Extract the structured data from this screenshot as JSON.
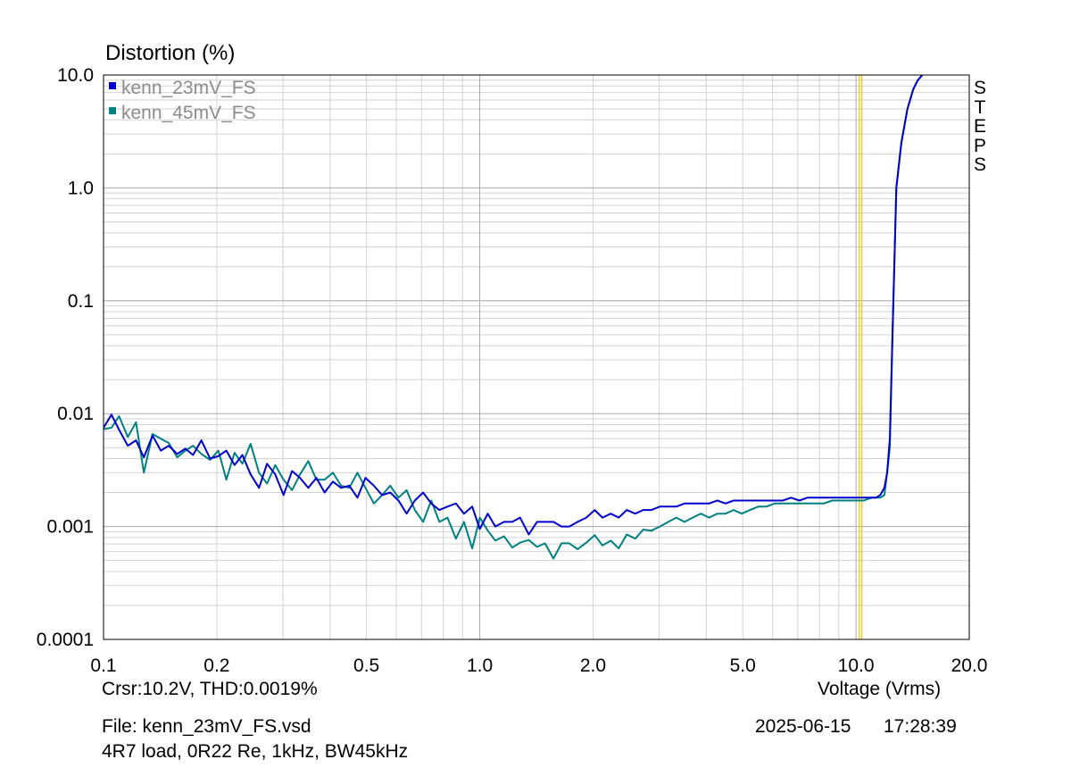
{
  "chart_data": {
    "type": "line",
    "title": "Distortion (%)",
    "xlabel": "Voltage (Vrms)",
    "ylabel": "Distortion (%)",
    "xscale": "log",
    "yscale": "log",
    "xlim": [
      0.1,
      20.0
    ],
    "ylim": [
      0.0001,
      10.0
    ],
    "grid": true,
    "x_tick_labels": [
      {
        "value": 0.1,
        "label": "0.1"
      },
      {
        "value": 0.2,
        "label": "0.2"
      },
      {
        "value": 0.5,
        "label": "0.5"
      },
      {
        "value": 1.0,
        "label": "1.0"
      },
      {
        "value": 2.0,
        "label": "2.0"
      },
      {
        "value": 5.0,
        "label": "5.0"
      },
      {
        "value": 10.0,
        "label": "10.0"
      },
      {
        "value": 20.0,
        "label": "20.0"
      }
    ],
    "y_tick_labels": [
      {
        "value": 10.0,
        "label": "10.0"
      },
      {
        "value": 1.0,
        "label": "1.0"
      },
      {
        "value": 0.1,
        "label": "0.1"
      },
      {
        "value": 0.01,
        "label": "0.01"
      },
      {
        "value": 0.001,
        "label": "0.001"
      },
      {
        "value": 0.0001,
        "label": "0.0001"
      }
    ],
    "cursor": {
      "x": 10.2,
      "color": "#ffc000",
      "label": "Crsr:10.2V, THD:0.0019%"
    },
    "legend_position": "top-left",
    "series": [
      {
        "name": "kenn_23mV_FS",
        "color": "#0000cc",
        "x": [
          0.1,
          0.105,
          0.11,
          0.116,
          0.122,
          0.128,
          0.135,
          0.142,
          0.149,
          0.157,
          0.165,
          0.173,
          0.182,
          0.192,
          0.202,
          0.212,
          0.223,
          0.234,
          0.246,
          0.259,
          0.272,
          0.286,
          0.301,
          0.317,
          0.333,
          0.35,
          0.368,
          0.387,
          0.407,
          0.428,
          0.45,
          0.473,
          0.497,
          0.523,
          0.55,
          0.578,
          0.608,
          0.639,
          0.672,
          0.707,
          0.743,
          0.781,
          0.821,
          0.864,
          0.908,
          0.955,
          1.0,
          1.05,
          1.1,
          1.16,
          1.22,
          1.28,
          1.35,
          1.42,
          1.49,
          1.57,
          1.65,
          1.73,
          1.82,
          1.92,
          2.02,
          2.12,
          2.23,
          2.34,
          2.46,
          2.59,
          2.72,
          2.86,
          3.01,
          3.17,
          3.33,
          3.5,
          3.68,
          3.87,
          4.07,
          4.28,
          4.5,
          4.73,
          4.97,
          5.23,
          5.5,
          5.78,
          6.08,
          6.39,
          6.72,
          7.07,
          7.43,
          7.81,
          8.21,
          8.64,
          9.08,
          9.55,
          10.0,
          10.5,
          11.0,
          11.3,
          11.6,
          11.9,
          12.1,
          12.3,
          12.5,
          12.8,
          13.2,
          13.7,
          14.2,
          14.6,
          15.0
        ],
        "values": [
          0.0075,
          0.0098,
          0.0072,
          0.0052,
          0.0058,
          0.0041,
          0.0064,
          0.0047,
          0.0052,
          0.0044,
          0.0049,
          0.0043,
          0.0058,
          0.004,
          0.0042,
          0.0047,
          0.0035,
          0.0043,
          0.0029,
          0.0022,
          0.0036,
          0.0029,
          0.0019,
          0.0031,
          0.0027,
          0.0022,
          0.0027,
          0.002,
          0.0025,
          0.0022,
          0.0023,
          0.0018,
          0.0027,
          0.0023,
          0.0019,
          0.002,
          0.0017,
          0.0013,
          0.0017,
          0.002,
          0.0016,
          0.0014,
          0.0015,
          0.0016,
          0.0013,
          0.0015,
          0.00095,
          0.0013,
          0.001,
          0.0011,
          0.0011,
          0.0012,
          0.00085,
          0.0011,
          0.0011,
          0.0011,
          0.001,
          0.001,
          0.0011,
          0.0012,
          0.0014,
          0.0012,
          0.0013,
          0.0012,
          0.0014,
          0.0013,
          0.0014,
          0.0014,
          0.0015,
          0.0015,
          0.0015,
          0.0016,
          0.0016,
          0.0016,
          0.0016,
          0.0017,
          0.0016,
          0.0017,
          0.0017,
          0.0017,
          0.0017,
          0.0017,
          0.0017,
          0.0017,
          0.0018,
          0.0017,
          0.0018,
          0.0018,
          0.0018,
          0.0018,
          0.0018,
          0.0018,
          0.0018,
          0.0018,
          0.0018,
          0.0018,
          0.0019,
          0.0022,
          0.003,
          0.006,
          0.05,
          1.0,
          2.5,
          5.0,
          7.5,
          9.0,
          10.5
        ]
      },
      {
        "name": "kenn_45mV_FS",
        "color": "#008080",
        "x": [
          0.1,
          0.105,
          0.11,
          0.116,
          0.122,
          0.128,
          0.135,
          0.142,
          0.149,
          0.157,
          0.165,
          0.173,
          0.182,
          0.192,
          0.202,
          0.212,
          0.223,
          0.234,
          0.246,
          0.259,
          0.272,
          0.286,
          0.301,
          0.317,
          0.333,
          0.35,
          0.368,
          0.387,
          0.407,
          0.428,
          0.45,
          0.473,
          0.497,
          0.523,
          0.55,
          0.578,
          0.608,
          0.639,
          0.672,
          0.707,
          0.743,
          0.781,
          0.821,
          0.864,
          0.908,
          0.955,
          1.0,
          1.05,
          1.1,
          1.16,
          1.22,
          1.28,
          1.35,
          1.42,
          1.49,
          1.57,
          1.65,
          1.73,
          1.82,
          1.92,
          2.02,
          2.12,
          2.23,
          2.34,
          2.46,
          2.59,
          2.72,
          2.86,
          3.01,
          3.17,
          3.33,
          3.5,
          3.68,
          3.87,
          4.07,
          4.28,
          4.5,
          4.73,
          4.97,
          5.23,
          5.5,
          5.78,
          6.08,
          6.39,
          6.72,
          7.07,
          7.43,
          7.81,
          8.21,
          8.64,
          9.08,
          9.55,
          10.0,
          10.5,
          11.0,
          11.3,
          11.6,
          11.9,
          12.1,
          12.3,
          12.5,
          12.8,
          13.2,
          13.7,
          14.2,
          14.6,
          15.0
        ],
        "values": [
          0.0073,
          0.0075,
          0.0095,
          0.0062,
          0.0084,
          0.003,
          0.0066,
          0.006,
          0.0055,
          0.0041,
          0.0047,
          0.0052,
          0.0044,
          0.0039,
          0.0047,
          0.0026,
          0.0045,
          0.0036,
          0.0054,
          0.003,
          0.0024,
          0.0035,
          0.0026,
          0.0021,
          0.0029,
          0.0038,
          0.0026,
          0.0026,
          0.003,
          0.0023,
          0.0022,
          0.003,
          0.0022,
          0.0016,
          0.0019,
          0.0023,
          0.0018,
          0.0021,
          0.0014,
          0.0011,
          0.0017,
          0.0011,
          0.0012,
          0.00078,
          0.0011,
          0.00064,
          0.0012,
          0.00092,
          0.00075,
          0.00082,
          0.00065,
          0.00072,
          0.00076,
          0.00066,
          0.00071,
          0.00052,
          0.00071,
          0.00071,
          0.00063,
          0.00072,
          0.00084,
          0.00068,
          0.00075,
          0.00064,
          0.00085,
          0.00078,
          0.00094,
          0.00092,
          0.001,
          0.0011,
          0.0012,
          0.0011,
          0.0012,
          0.0013,
          0.0012,
          0.0013,
          0.0013,
          0.0014,
          0.0013,
          0.0014,
          0.0015,
          0.0015,
          0.0016,
          0.0016,
          0.0016,
          0.0016,
          0.0016,
          0.0016,
          0.0016,
          0.0017,
          0.0017,
          0.0017,
          0.0017,
          0.0017,
          0.0018,
          0.0018,
          0.0018,
          0.0019,
          0.003,
          0.005,
          0.05,
          1.0,
          2.5,
          5.0,
          7.5,
          9.0,
          10.5
        ]
      }
    ]
  },
  "side_label": [
    "S",
    "T",
    "E",
    "P",
    "S"
  ],
  "footer": {
    "file": "File: kenn_23mV_FS.vsd",
    "description": "4R7 load, 0R22 Re, 1kHz, BW45kHz",
    "date": "2025-06-15",
    "time": "17:28:39"
  }
}
